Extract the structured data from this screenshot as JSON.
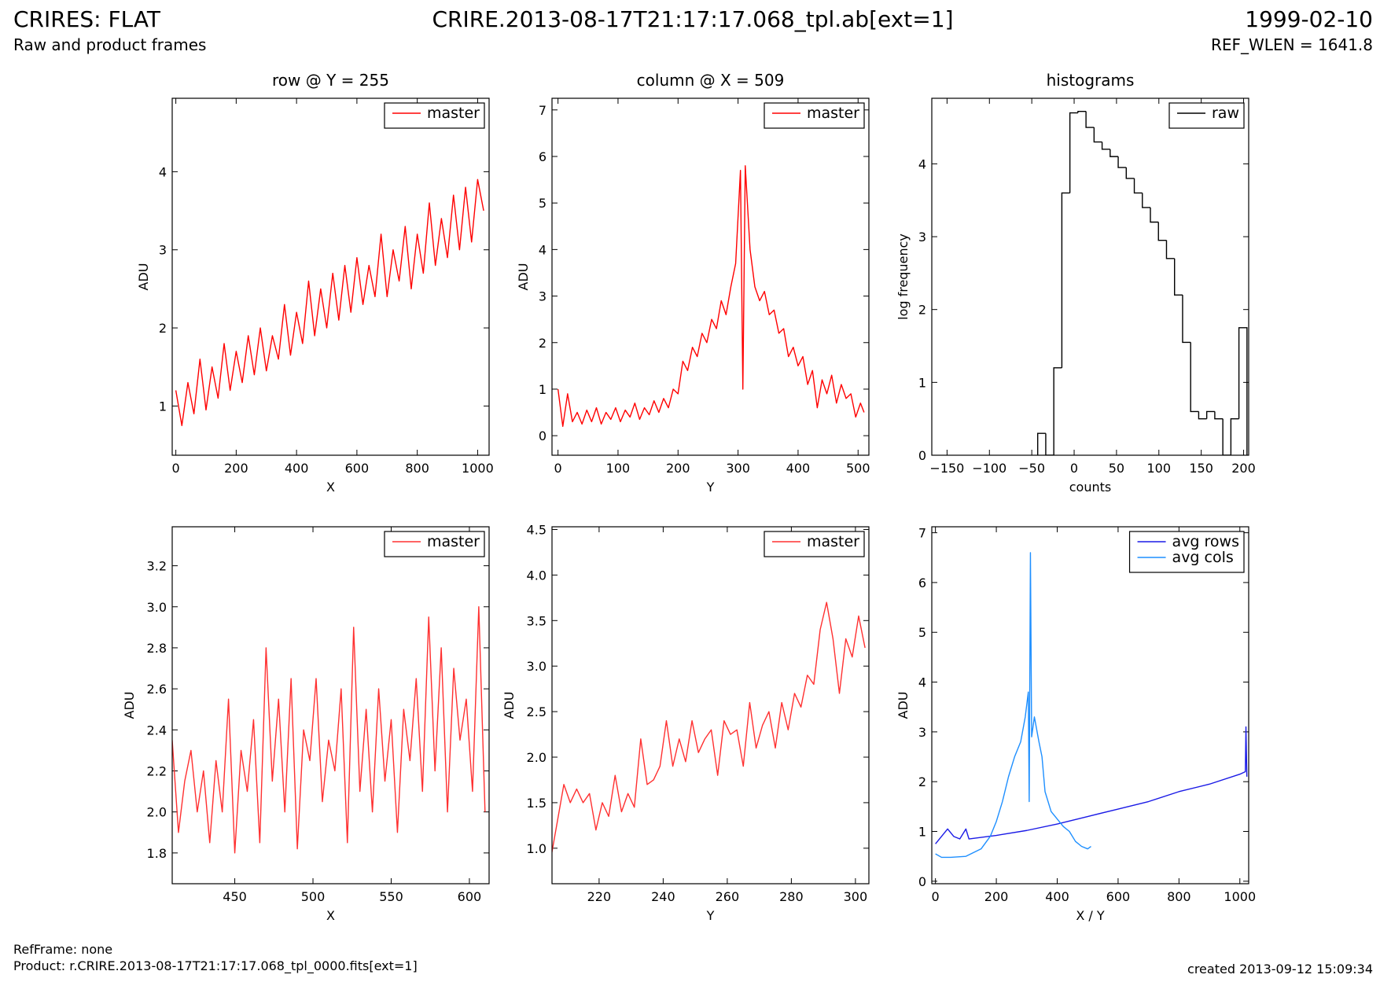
{
  "header": {
    "title_left": "CRIRES: FLAT",
    "title_center": "CRIRE.2013-08-17T21:17:17.068_tpl.ab[ext=1]",
    "title_right": "1999-02-10",
    "subtitle_left": "Raw and product frames",
    "subtitle_right": "REF_WLEN = 1641.8"
  },
  "footer": {
    "ref_frame": "RefFrame: none",
    "product": "Product: r.CRIRE.2013-08-17T21:17:17.068_tpl_0000.fits[ext=1]",
    "created": "created 2013-09-12 15:09:34"
  },
  "chart_data": [
    {
      "type": "line",
      "title": "row @ Y = 255",
      "x_label": "X",
      "y_label": "ADU",
      "legend": "upper right",
      "xlim": [
        -12,
        1038
      ],
      "xticks": [
        0,
        200,
        400,
        600,
        800,
        1000
      ],
      "ylim": [
        0.37,
        4.94
      ],
      "yticks": [
        1,
        2,
        3,
        4
      ],
      "x": [
        0,
        20,
        40,
        60,
        80,
        100,
        120,
        140,
        160,
        180,
        200,
        220,
        240,
        260,
        280,
        300,
        320,
        340,
        360,
        380,
        400,
        420,
        440,
        460,
        480,
        500,
        520,
        540,
        560,
        580,
        600,
        620,
        640,
        660,
        680,
        700,
        720,
        740,
        760,
        780,
        800,
        820,
        840,
        860,
        880,
        900,
        920,
        940,
        960,
        980,
        1000,
        1020
      ],
      "series": [
        {
          "name": "master",
          "color": "#ff0000",
          "values": [
            1.2,
            0.75,
            1.3,
            0.9,
            1.6,
            0.95,
            1.5,
            1.1,
            1.8,
            1.2,
            1.7,
            1.3,
            1.9,
            1.4,
            2.0,
            1.45,
            1.9,
            1.6,
            2.3,
            1.65,
            2.2,
            1.8,
            2.6,
            1.9,
            2.5,
            2.0,
            2.7,
            2.1,
            2.8,
            2.2,
            2.9,
            2.3,
            2.8,
            2.4,
            3.2,
            2.4,
            3.0,
            2.6,
            3.3,
            2.5,
            3.2,
            2.7,
            3.6,
            2.8,
            3.4,
            2.9,
            3.7,
            3.0,
            3.8,
            3.1,
            3.9,
            3.5
          ]
        }
      ]
    },
    {
      "type": "line",
      "title": "column @ X = 509",
      "x_label": "Y",
      "y_label": "ADU",
      "legend": "upper right",
      "xlim": [
        -10,
        518
      ],
      "xticks": [
        0,
        100,
        200,
        300,
        400,
        500
      ],
      "ylim": [
        -0.42,
        7.25
      ],
      "yticks": [
        0,
        1,
        2,
        3,
        4,
        5,
        6,
        7
      ],
      "x": [
        0,
        8,
        16,
        24,
        32,
        40,
        48,
        56,
        64,
        72,
        80,
        88,
        96,
        104,
        112,
        120,
        128,
        136,
        144,
        152,
        160,
        168,
        176,
        184,
        192,
        200,
        208,
        216,
        224,
        232,
        240,
        248,
        256,
        264,
        272,
        280,
        288,
        296,
        304,
        308,
        312,
        320,
        328,
        336,
        344,
        352,
        360,
        368,
        376,
        384,
        392,
        400,
        408,
        416,
        424,
        432,
        440,
        448,
        456,
        464,
        472,
        480,
        488,
        496,
        504,
        510
      ],
      "series": [
        {
          "name": "master",
          "color": "#ff0000",
          "values": [
            1.0,
            0.2,
            0.9,
            0.3,
            0.5,
            0.25,
            0.55,
            0.3,
            0.6,
            0.25,
            0.5,
            0.35,
            0.6,
            0.3,
            0.55,
            0.4,
            0.7,
            0.35,
            0.6,
            0.45,
            0.75,
            0.5,
            0.8,
            0.6,
            1.0,
            0.9,
            1.6,
            1.4,
            1.9,
            1.7,
            2.2,
            2.0,
            2.5,
            2.3,
            2.9,
            2.6,
            3.2,
            3.7,
            5.7,
            1.0,
            5.8,
            4.0,
            3.2,
            2.9,
            3.1,
            2.6,
            2.7,
            2.2,
            2.3,
            1.7,
            1.9,
            1.5,
            1.7,
            1.1,
            1.4,
            0.6,
            1.2,
            0.9,
            1.3,
            0.7,
            1.1,
            0.8,
            0.9,
            0.4,
            0.7,
            0.5
          ]
        }
      ]
    },
    {
      "type": "histogram",
      "title": "histograms",
      "x_label": "counts",
      "y_label": "log frequency",
      "legend": "upper right",
      "xlim": [
        -168,
        206
      ],
      "xticks": [
        {
          "value": -150,
          "label": "−150"
        },
        {
          "value": -100,
          "label": "−100"
        },
        {
          "value": -50,
          "label": "−50"
        },
        0,
        50,
        100,
        150,
        200
      ],
      "ylim": [
        0,
        4.9
      ],
      "yticks": [
        0,
        1,
        2,
        3,
        4
      ],
      "name": "raw",
      "color": "#000000",
      "bins": [
        -43,
        -33.5,
        -24,
        -14.5,
        -5,
        4.5,
        14,
        23.5,
        33,
        42.5,
        52,
        61.5,
        71,
        80.5,
        90,
        99.5,
        109,
        118.5,
        128,
        137.5,
        147,
        156.5,
        166,
        175.5,
        185,
        194.5,
        204
      ],
      "counts": [
        0.3,
        0,
        1.2,
        3.6,
        4.7,
        4.72,
        4.5,
        4.3,
        4.2,
        4.1,
        3.95,
        3.8,
        3.6,
        3.4,
        3.2,
        2.95,
        2.7,
        2.2,
        1.55,
        0.6,
        0.5,
        0.6,
        0.5,
        0,
        0.5,
        1.75
      ]
    },
    {
      "type": "line",
      "x_label": "X",
      "y_label": "ADU",
      "legend": "upper right",
      "xlim": [
        410,
        612.6
      ],
      "xticks": [
        450,
        500,
        550,
        600
      ],
      "ylim": [
        1.65,
        3.39
      ],
      "yticks": [
        1.8,
        {
          "value": 2,
          "label": "2.0"
        },
        2.2,
        2.4,
        2.6,
        2.8,
        {
          "value": 3,
          "label": "3.0"
        },
        3.2
      ],
      "x": [
        410,
        414,
        418,
        422,
        426,
        430,
        434,
        438,
        442,
        446,
        450,
        454,
        458,
        462,
        466,
        470,
        474,
        478,
        482,
        486,
        490,
        494,
        498,
        502,
        506,
        510,
        514,
        518,
        522,
        526,
        530,
        534,
        538,
        542,
        546,
        550,
        554,
        558,
        562,
        566,
        570,
        574,
        578,
        582,
        586,
        590,
        594,
        598,
        602,
        606,
        610
      ],
      "series": [
        {
          "name": "master",
          "color": "#ff3030",
          "values": [
            2.35,
            1.9,
            2.15,
            2.3,
            2.0,
            2.2,
            1.85,
            2.25,
            2.0,
            2.55,
            1.8,
            2.3,
            2.1,
            2.45,
            1.85,
            2.8,
            2.15,
            2.55,
            2.0,
            2.65,
            1.82,
            2.4,
            2.25,
            2.65,
            2.05,
            2.35,
            2.2,
            2.6,
            1.85,
            2.9,
            2.1,
            2.5,
            2.0,
            2.6,
            2.15,
            2.45,
            1.9,
            2.5,
            2.25,
            2.65,
            2.1,
            2.95,
            2.2,
            2.8,
            2.0,
            2.7,
            2.35,
            2.55,
            2.1,
            3.0,
            2.0
          ]
        }
      ]
    },
    {
      "type": "line",
      "x_label": "Y",
      "y_label": "ADU",
      "legend": "upper right",
      "xlim": [
        205.3,
        304.2
      ],
      "xticks": [
        220,
        240,
        260,
        280,
        300
      ],
      "ylim": [
        0.61,
        4.53
      ],
      "yticks": [
        {
          "value": 1,
          "label": "1.0"
        },
        1.5,
        {
          "value": 2,
          "label": "2.0"
        },
        2.5,
        {
          "value": 3,
          "label": "3.0"
        },
        3.5,
        {
          "value": 4,
          "label": "4.0"
        },
        4.5
      ],
      "x": [
        205,
        207,
        209,
        211,
        213,
        215,
        217,
        219,
        221,
        223,
        225,
        227,
        229,
        231,
        233,
        235,
        237,
        239,
        241,
        243,
        245,
        247,
        249,
        251,
        253,
        255,
        257,
        259,
        261,
        263,
        265,
        267,
        269,
        271,
        273,
        275,
        277,
        279,
        281,
        283,
        285,
        287,
        289,
        291,
        293,
        295,
        297,
        299,
        301,
        303
      ],
      "series": [
        {
          "name": "master",
          "color": "#ff3030",
          "values": [
            0.9,
            1.3,
            1.7,
            1.5,
            1.65,
            1.5,
            1.6,
            1.2,
            1.5,
            1.35,
            1.8,
            1.4,
            1.6,
            1.45,
            2.2,
            1.7,
            1.75,
            1.9,
            2.4,
            1.9,
            2.2,
            1.95,
            2.4,
            2.05,
            2.2,
            2.3,
            1.8,
            2.4,
            2.25,
            2.3,
            1.9,
            2.6,
            2.1,
            2.35,
            2.5,
            2.1,
            2.6,
            2.3,
            2.7,
            2.55,
            2.9,
            2.8,
            3.4,
            3.7,
            3.3,
            2.7,
            3.3,
            3.1,
            3.55,
            3.2
          ]
        }
      ]
    },
    {
      "type": "line",
      "x_label": "X / Y",
      "y_label": "ADU",
      "legend": "upper right",
      "xlim": [
        -12,
        1029
      ],
      "xticks": [
        0,
        200,
        400,
        600,
        800,
        1000
      ],
      "ylim": [
        -0.05,
        7.12
      ],
      "yticks": [
        0,
        1,
        2,
        3,
        4,
        5,
        6,
        7
      ],
      "series": [
        {
          "name": "avg rows",
          "color": "#1a1ae6",
          "x": [
            0,
            20,
            40,
            60,
            80,
            100,
            110,
            150,
            200,
            300,
            400,
            500,
            600,
            700,
            800,
            900,
            1000,
            1018,
            1020,
            1023
          ],
          "values": [
            0.75,
            0.9,
            1.05,
            0.9,
            0.85,
            1.05,
            0.85,
            0.88,
            0.92,
            1.02,
            1.15,
            1.3,
            1.45,
            1.6,
            1.8,
            1.95,
            2.15,
            2.2,
            3.1,
            2.1
          ]
        },
        {
          "name": "avg cols",
          "color": "#1e8fff",
          "x": [
            0,
            20,
            50,
            100,
            150,
            180,
            200,
            220,
            240,
            260,
            280,
            295,
            305,
            308,
            312,
            316,
            325,
            340,
            350,
            360,
            380,
            400,
            420,
            440,
            460,
            480,
            500,
            511
          ],
          "values": [
            0.55,
            0.48,
            0.48,
            0.5,
            0.65,
            0.9,
            1.2,
            1.6,
            2.1,
            2.5,
            2.8,
            3.3,
            3.8,
            1.6,
            6.6,
            2.9,
            3.3,
            2.8,
            2.5,
            1.8,
            1.4,
            1.25,
            1.1,
            1.0,
            0.8,
            0.7,
            0.65,
            0.7
          ]
        }
      ]
    }
  ]
}
